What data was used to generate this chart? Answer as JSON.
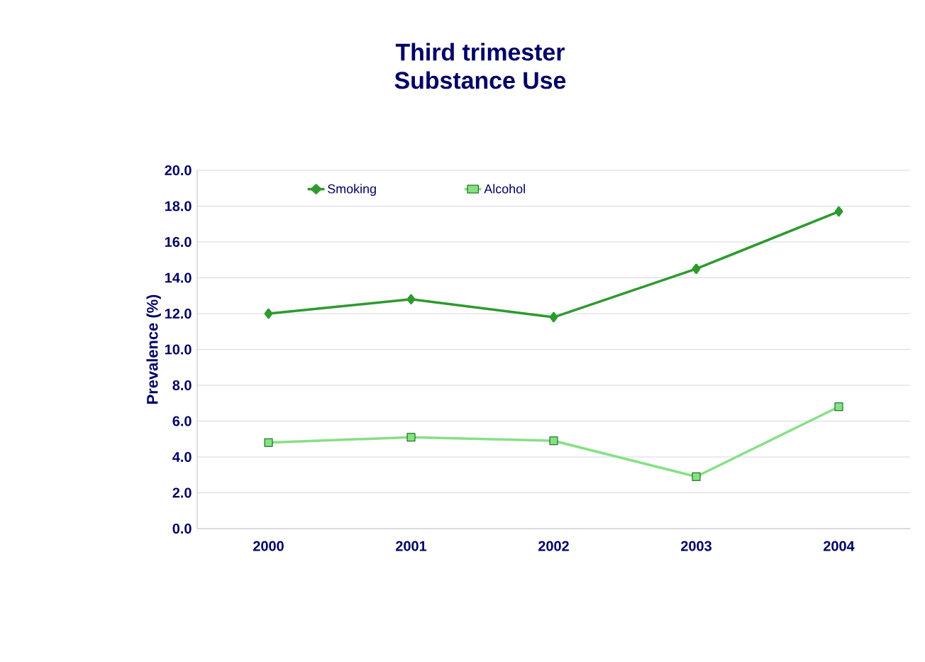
{
  "chart_data": {
    "type": "line",
    "title": "Third trimester\nSubstance Use",
    "ylabel": "Prevalence (%)",
    "categories": [
      "2000",
      "2001",
      "2002",
      "2003",
      "2004"
    ],
    "series": [
      {
        "name": "Smoking",
        "color": "#2e9a2e",
        "marker": "diamond",
        "values": [
          12.0,
          12.8,
          11.8,
          14.5,
          17.7
        ]
      },
      {
        "name": "Alcohol",
        "color": "#86e086",
        "marker": "square",
        "values": [
          4.8,
          5.1,
          4.9,
          2.9,
          6.8
        ]
      }
    ],
    "ylim": [
      0,
      20
    ],
    "yticks": [
      {
        "value": 0,
        "label": "0.0"
      },
      {
        "value": 2,
        "label": "2.0"
      },
      {
        "value": 4,
        "label": "4.0"
      },
      {
        "value": 6,
        "label": "6.0"
      },
      {
        "value": 8,
        "label": "8.0"
      },
      {
        "value": 10,
        "label": "10.0"
      },
      {
        "value": 12,
        "label": "12.0"
      },
      {
        "value": 14,
        "label": "14.0"
      },
      {
        "value": 16,
        "label": "16.0"
      },
      {
        "value": 18,
        "label": "18.0"
      },
      {
        "value": 20,
        "label": "20.0"
      }
    ],
    "grid": "y",
    "legend": "top",
    "line_style": "solid"
  }
}
